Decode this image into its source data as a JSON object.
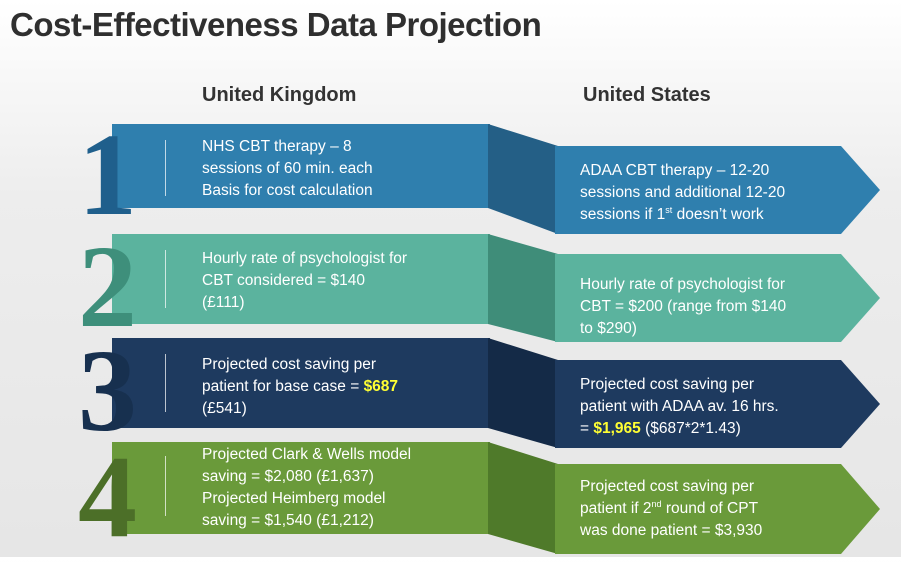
{
  "title": "Cost-Effectiveness Data Projection",
  "headers": {
    "uk": "United Kingdom",
    "us": "United States"
  },
  "rows": [
    {
      "number": "1",
      "uk_lines": [
        "NHS CBT therapy – 8",
        "sessions of 60 min. each",
        "Basis for cost calculation"
      ],
      "us_line1": "ADAA CBT therapy – 12-20",
      "us_line2": "sessions and additional 12-20",
      "us_line3a": "sessions if 1",
      "us_line3sup": "st",
      "us_line3b": " doesn’t work",
      "colors": {
        "band": "#2f7fae",
        "num": "#1f5f8c",
        "dark": "#245f86"
      }
    },
    {
      "number": "2",
      "uk_lines": [
        "Hourly rate of psychologist for",
        "CBT considered = $140",
        "(£111)"
      ],
      "us_lines": [
        "Hourly rate of psychologist for",
        "CBT = $200 (range from $140",
        "to $290)"
      ],
      "colors": {
        "band": "#5bb39e",
        "num": "#3e8f7b",
        "dark": "#3f8d79"
      }
    },
    {
      "number": "3",
      "uk_line1": "Projected cost saving per",
      "uk_line2a": "patient for base case = ",
      "uk_line2hl": "$687",
      "uk_line3": "(£541)",
      "us_line1": "Projected cost saving per",
      "us_line2": "patient with ADAA av. 16 hrs.",
      "us_line3a": "= ",
      "us_line3hl": "$1,965",
      "us_line3b": " ($687*2*1.43)",
      "colors": {
        "band": "#1e3a5f",
        "num": "#17304f",
        "dark": "#142a47"
      }
    },
    {
      "number": "4",
      "uk_lines": [
        "Projected Clark & Wells model",
        "saving = $2,080 (£1,637)",
        "Projected Heimberg model",
        "saving = $1,540 (£1,212)"
      ],
      "us_line1": "Projected cost saving per",
      "us_line2a": "patient if 2",
      "us_line2sup": "nd",
      "us_line2b": " round of CPT",
      "us_line3": "was done patient = $3,930",
      "colors": {
        "band": "#6a9a3a",
        "num": "#4c6f28",
        "dark": "#4f7a2a"
      }
    }
  ]
}
